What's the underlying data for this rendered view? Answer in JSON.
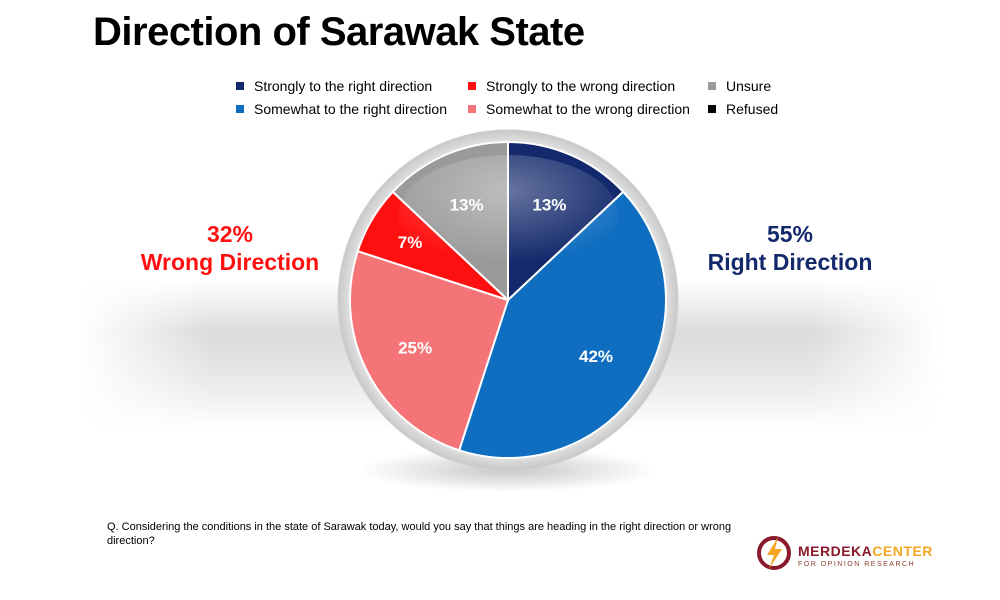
{
  "title": "Direction of Sarawak State",
  "chart_data": {
    "type": "pie",
    "start_angle_deg": 0,
    "direction": "clockwise",
    "slices": [
      {
        "label": "Strongly to the right direction",
        "value": 13,
        "color": "#13296b",
        "data_label": "13%"
      },
      {
        "label": "Somewhat to the right direction",
        "value": 42,
        "color": "#0f6ec0",
        "data_label": "42%"
      },
      {
        "label": "Somewhat to the wrong direction",
        "value": 25,
        "color": "#f47477",
        "data_label": "25%"
      },
      {
        "label": "Strongly to the wrong direction",
        "value": 7,
        "color": "#ff1010",
        "data_label": "7%"
      },
      {
        "label": "Unsure",
        "value": 13,
        "color": "#9a9a9a",
        "data_label": "13%"
      },
      {
        "label": "Refused",
        "value": 0,
        "color": "#000000",
        "data_label": ""
      }
    ],
    "legend": [
      {
        "label": "Strongly to the right direction",
        "color": "#13296b"
      },
      {
        "label": "Strongly to the wrong direction",
        "color": "#ff1010"
      },
      {
        "label": "Unsure",
        "color": "#9a9a9a"
      },
      {
        "label": "Somewhat to the right direction",
        "color": "#0f6ec0"
      },
      {
        "label": "Somewhat to the wrong direction",
        "color": "#f47477"
      },
      {
        "label": "Refused",
        "color": "#000000"
      }
    ],
    "legend_position": "top"
  },
  "summary": {
    "wrong_pct": "32%",
    "wrong_label": "Wrong Direction",
    "wrong_color": "#ff1010",
    "right_pct": "55%",
    "right_label": "Right Direction",
    "right_color": "#13296b"
  },
  "question": "Q. Considering the conditions in the state of Sarawak today, would you say that things are heading in the right direction or wrong direction?",
  "logo": {
    "name_part1": "MERDEKA",
    "name_part2": "CENTER",
    "tagline": "FOR OPINION RESEARCH",
    "color_primary": "#8a1a2b",
    "color_accent": "#f5a623",
    "icon": "lightning-bolt-circle-icon"
  }
}
